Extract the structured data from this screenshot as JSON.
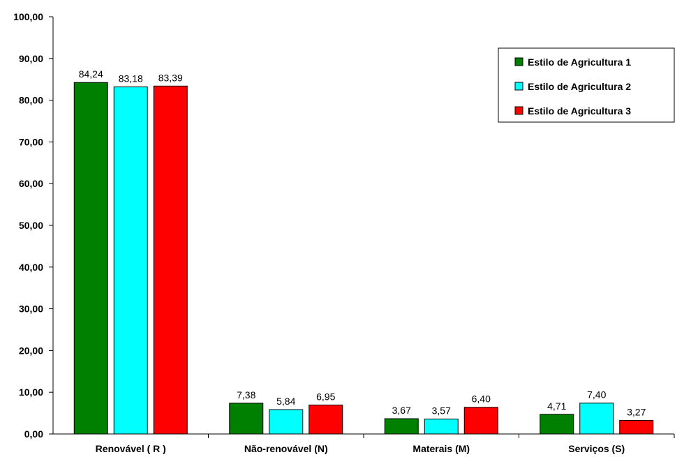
{
  "chart_data": {
    "type": "bar",
    "categories": [
      "Renovável ( R )",
      "Não-renovável (N)",
      "Materais (M)",
      "Serviços (S)"
    ],
    "series": [
      {
        "name": "Estilo de Agricultura 1",
        "color": "#008000",
        "values": [
          84.24,
          7.38,
          3.67,
          4.71
        ],
        "labels": [
          "84,24",
          "7,38",
          "3,67",
          "4,71"
        ]
      },
      {
        "name": "Estilo de Agricultura 2",
        "color": "#00ffff",
        "values": [
          83.18,
          5.84,
          3.57,
          7.4
        ],
        "labels": [
          "83,18",
          "5,84",
          "3,57",
          "7,40"
        ]
      },
      {
        "name": "Estilo de Agricultura 3",
        "color": "#ff0000",
        "values": [
          83.39,
          6.95,
          6.4,
          3.27
        ],
        "labels": [
          "83,39",
          "6,95",
          "6,40",
          "3,27"
        ]
      }
    ],
    "ylim": [
      0,
      100
    ],
    "yticks": [
      "0,00",
      "10,00",
      "20,00",
      "30,00",
      "40,00",
      "50,00",
      "60,00",
      "70,00",
      "80,00",
      "90,00",
      "100,00"
    ],
    "grid": false,
    "legend_position": "top-right"
  }
}
